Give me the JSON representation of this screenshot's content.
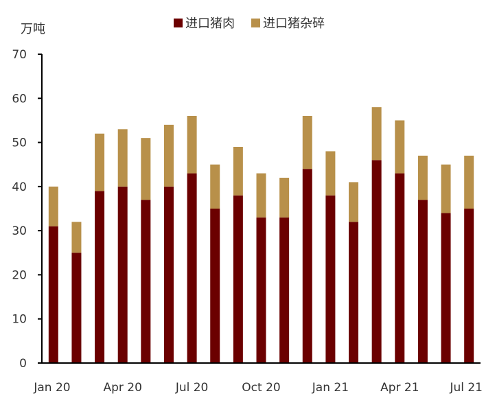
{
  "chart_data": {
    "type": "bar",
    "stacked": true,
    "unit_label": "万吨",
    "categories": [
      "Jan 20",
      "Feb 20",
      "Mar 20",
      "Apr 20",
      "May 20",
      "Jun 20",
      "Jul 20",
      "Aug 20",
      "Sep 20",
      "Oct 20",
      "Nov 20",
      "Dec 20",
      "Jan 21",
      "Feb 21",
      "Mar 21",
      "Apr 21",
      "May 21",
      "Jun 21",
      "Jul 21"
    ],
    "x_tick_labels": [
      {
        "index": 0,
        "label": "Jan 20"
      },
      {
        "index": 3,
        "label": "Apr 20"
      },
      {
        "index": 6,
        "label": "Jul 20"
      },
      {
        "index": 9,
        "label": "Oct 20"
      },
      {
        "index": 12,
        "label": "Jan 21"
      },
      {
        "index": 15,
        "label": "Apr 21"
      },
      {
        "index": 18,
        "label": "Jul 21"
      }
    ],
    "series": [
      {
        "name": "进口猪肉",
        "color": "#6b0000",
        "values": [
          31,
          25,
          39,
          40,
          37,
          40,
          43,
          35,
          38,
          33,
          33,
          44,
          38,
          32,
          46,
          43,
          37,
          34,
          35
        ]
      },
      {
        "name": "进口猪杂碎",
        "color": "#b8904a",
        "values": [
          9,
          7,
          13,
          13,
          14,
          14,
          13,
          10,
          11,
          10,
          9,
          12,
          10,
          9,
          12,
          12,
          10,
          11,
          12
        ]
      }
    ],
    "ylim": [
      0,
      70
    ],
    "y_ticks": [
      0,
      10,
      20,
      30,
      40,
      50,
      60,
      70
    ],
    "legend_position": "top-center",
    "grid": false
  }
}
